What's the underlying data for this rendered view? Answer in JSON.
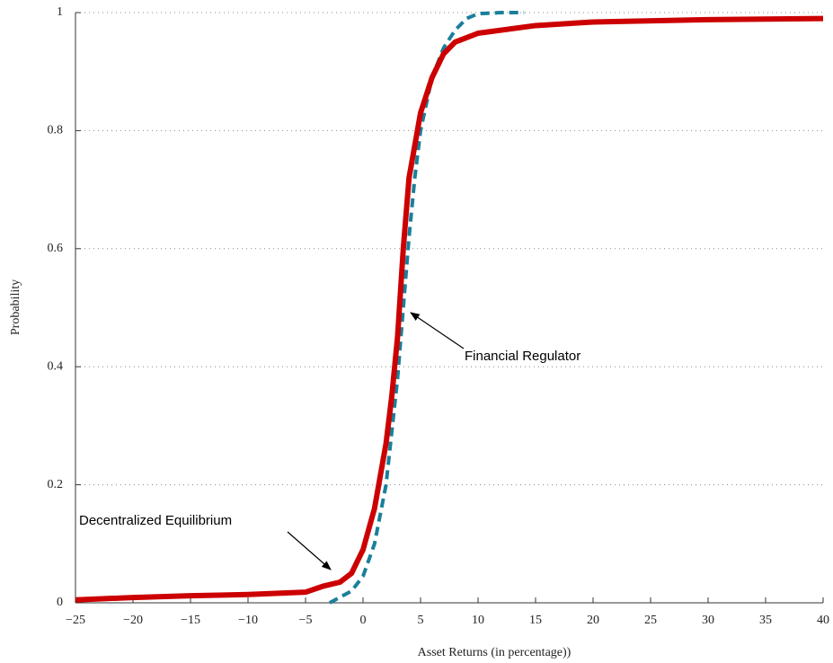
{
  "chart_data": {
    "type": "line",
    "xlabel": "Asset Returns  (in percentage))",
    "ylabel": "Probability",
    "xlim": [
      -25,
      40
    ],
    "ylim": [
      0,
      1
    ],
    "xticks": [
      {
        "value": -25,
        "label": "−25"
      },
      {
        "value": -20,
        "label": "−20"
      },
      {
        "value": -15,
        "label": "−15"
      },
      {
        "value": -10,
        "label": "−10"
      },
      {
        "value": -5,
        "label": "−5"
      },
      0,
      5,
      10,
      15,
      20,
      25,
      30,
      35,
      40
    ],
    "yticks": [
      0,
      0.2,
      0.4,
      0.6,
      0.8,
      1
    ],
    "grid": true,
    "series": [
      {
        "name": "Decentralized Equilibrium",
        "color": "#cc0000",
        "dash": false,
        "x": [
          -25,
          -20,
          -15,
          -10,
          -5,
          -3.5,
          -2,
          -1,
          0,
          1,
          2,
          2.5,
          3,
          3.5,
          4,
          5,
          6,
          7,
          8,
          10,
          15,
          20,
          30,
          40
        ],
        "values": [
          0.005,
          0.009,
          0.012,
          0.014,
          0.018,
          0.028,
          0.035,
          0.05,
          0.09,
          0.16,
          0.27,
          0.35,
          0.45,
          0.6,
          0.72,
          0.83,
          0.89,
          0.93,
          0.95,
          0.965,
          0.978,
          0.984,
          0.988,
          0.99
        ]
      },
      {
        "name": "Financial Regulator",
        "color": "#1a7f9a",
        "dash": true,
        "x": [
          -2.9,
          -1,
          0,
          1,
          2,
          3,
          3.5,
          4,
          4.5,
          5,
          6,
          7,
          8,
          9,
          10,
          12,
          14
        ],
        "values": [
          0,
          0.02,
          0.045,
          0.1,
          0.2,
          0.38,
          0.5,
          0.62,
          0.72,
          0.8,
          0.89,
          0.94,
          0.97,
          0.99,
          0.998,
          1,
          1
        ]
      }
    ]
  }
}
